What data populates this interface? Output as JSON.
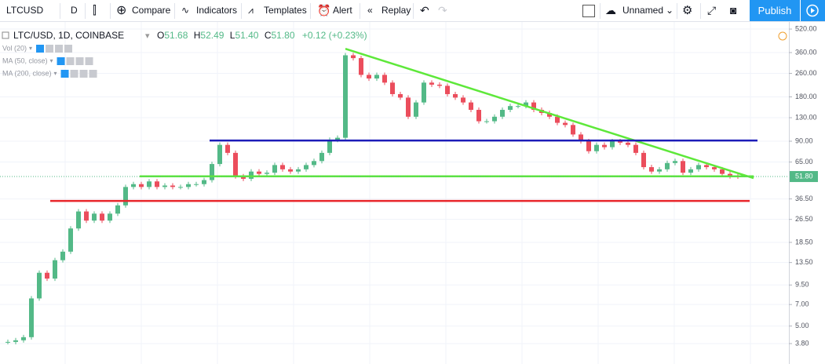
{
  "toolbar": {
    "symbol": "LTCUSD",
    "interval": "D",
    "compare": "Compare",
    "indicators": "Indicators",
    "templates": "Templates",
    "alert": "Alert",
    "replay": "Replay",
    "layout_name": "Unnamed",
    "publish": "Publish"
  },
  "legend": {
    "title": "LTC/USD, 1D, COINBASE",
    "open_label": "O",
    "open": "51.68",
    "high_label": "H",
    "high": "52.49",
    "low_label": "L",
    "low": "51.40",
    "close_label": "C",
    "close": "51.80",
    "change": "+0.12 (+0.23%)",
    "studies": [
      "Vol (20)",
      "MA (50, close)",
      "MA (200, close)"
    ]
  },
  "chart": {
    "type": "candlestick",
    "log_scale": true,
    "ylim": [
      2.83,
      560
    ],
    "yticks": [
      {
        "value": 3.8,
        "label": "3.80"
      },
      {
        "value": 5,
        "label": "5.00"
      },
      {
        "value": 7,
        "label": "7.00"
      },
      {
        "value": 9.5,
        "label": "9.50"
      },
      {
        "value": 13.5,
        "label": "13.50"
      },
      {
        "value": 18.5,
        "label": "18.50"
      },
      {
        "value": 26.5,
        "label": "26.50"
      },
      {
        "value": 36.5,
        "label": "36.50"
      },
      {
        "value": 65,
        "label": "65.00"
      },
      {
        "value": 90,
        "label": "90.00"
      },
      {
        "value": 130,
        "label": "130.00"
      },
      {
        "value": 180,
        "label": "180.00"
      },
      {
        "value": 260,
        "label": "260.00"
      },
      {
        "value": 360,
        "label": "360.00"
      },
      {
        "value": 520,
        "label": "520.00"
      }
    ],
    "last_price": {
      "value": 51.8,
      "label": "51.80"
    },
    "up_color": "#53b987",
    "down_color": "#eb4d5c",
    "closes": [
      3.9,
      4.0,
      4.2,
      7.7,
      11.5,
      10.5,
      14,
      16,
      23,
      30,
      26,
      29,
      26,
      29,
      33,
      44,
      46,
      44,
      48,
      44,
      45,
      44,
      44,
      46,
      46,
      49,
      63,
      85,
      75,
      52,
      50,
      56,
      54,
      55,
      62,
      58,
      56,
      58,
      62,
      66,
      75,
      92,
      95,
      345,
      330,
      254,
      240,
      254,
      225,
      188,
      178,
      132,
      165,
      225,
      218,
      214,
      188,
      178,
      165,
      147,
      123,
      123,
      132,
      147,
      156,
      156,
      165,
      147,
      140,
      132,
      120,
      116,
      100,
      90,
      77,
      85,
      82,
      90,
      88,
      85,
      75,
      60,
      56,
      58,
      64,
      66,
      55,
      58,
      62,
      60,
      58,
      54,
      52,
      51.8
    ],
    "drawings": [
      {
        "type": "trend",
        "color": "#5ee83a",
        "prices": [
          382,
          50.5
        ]
      },
      {
        "type": "horizontal",
        "color": "#1c1cb8",
        "price": 91
      },
      {
        "type": "horizontal",
        "color": "#5ee83a",
        "price": 52
      },
      {
        "type": "horizontal",
        "color": "#e8262b",
        "price": 35.4
      }
    ]
  }
}
